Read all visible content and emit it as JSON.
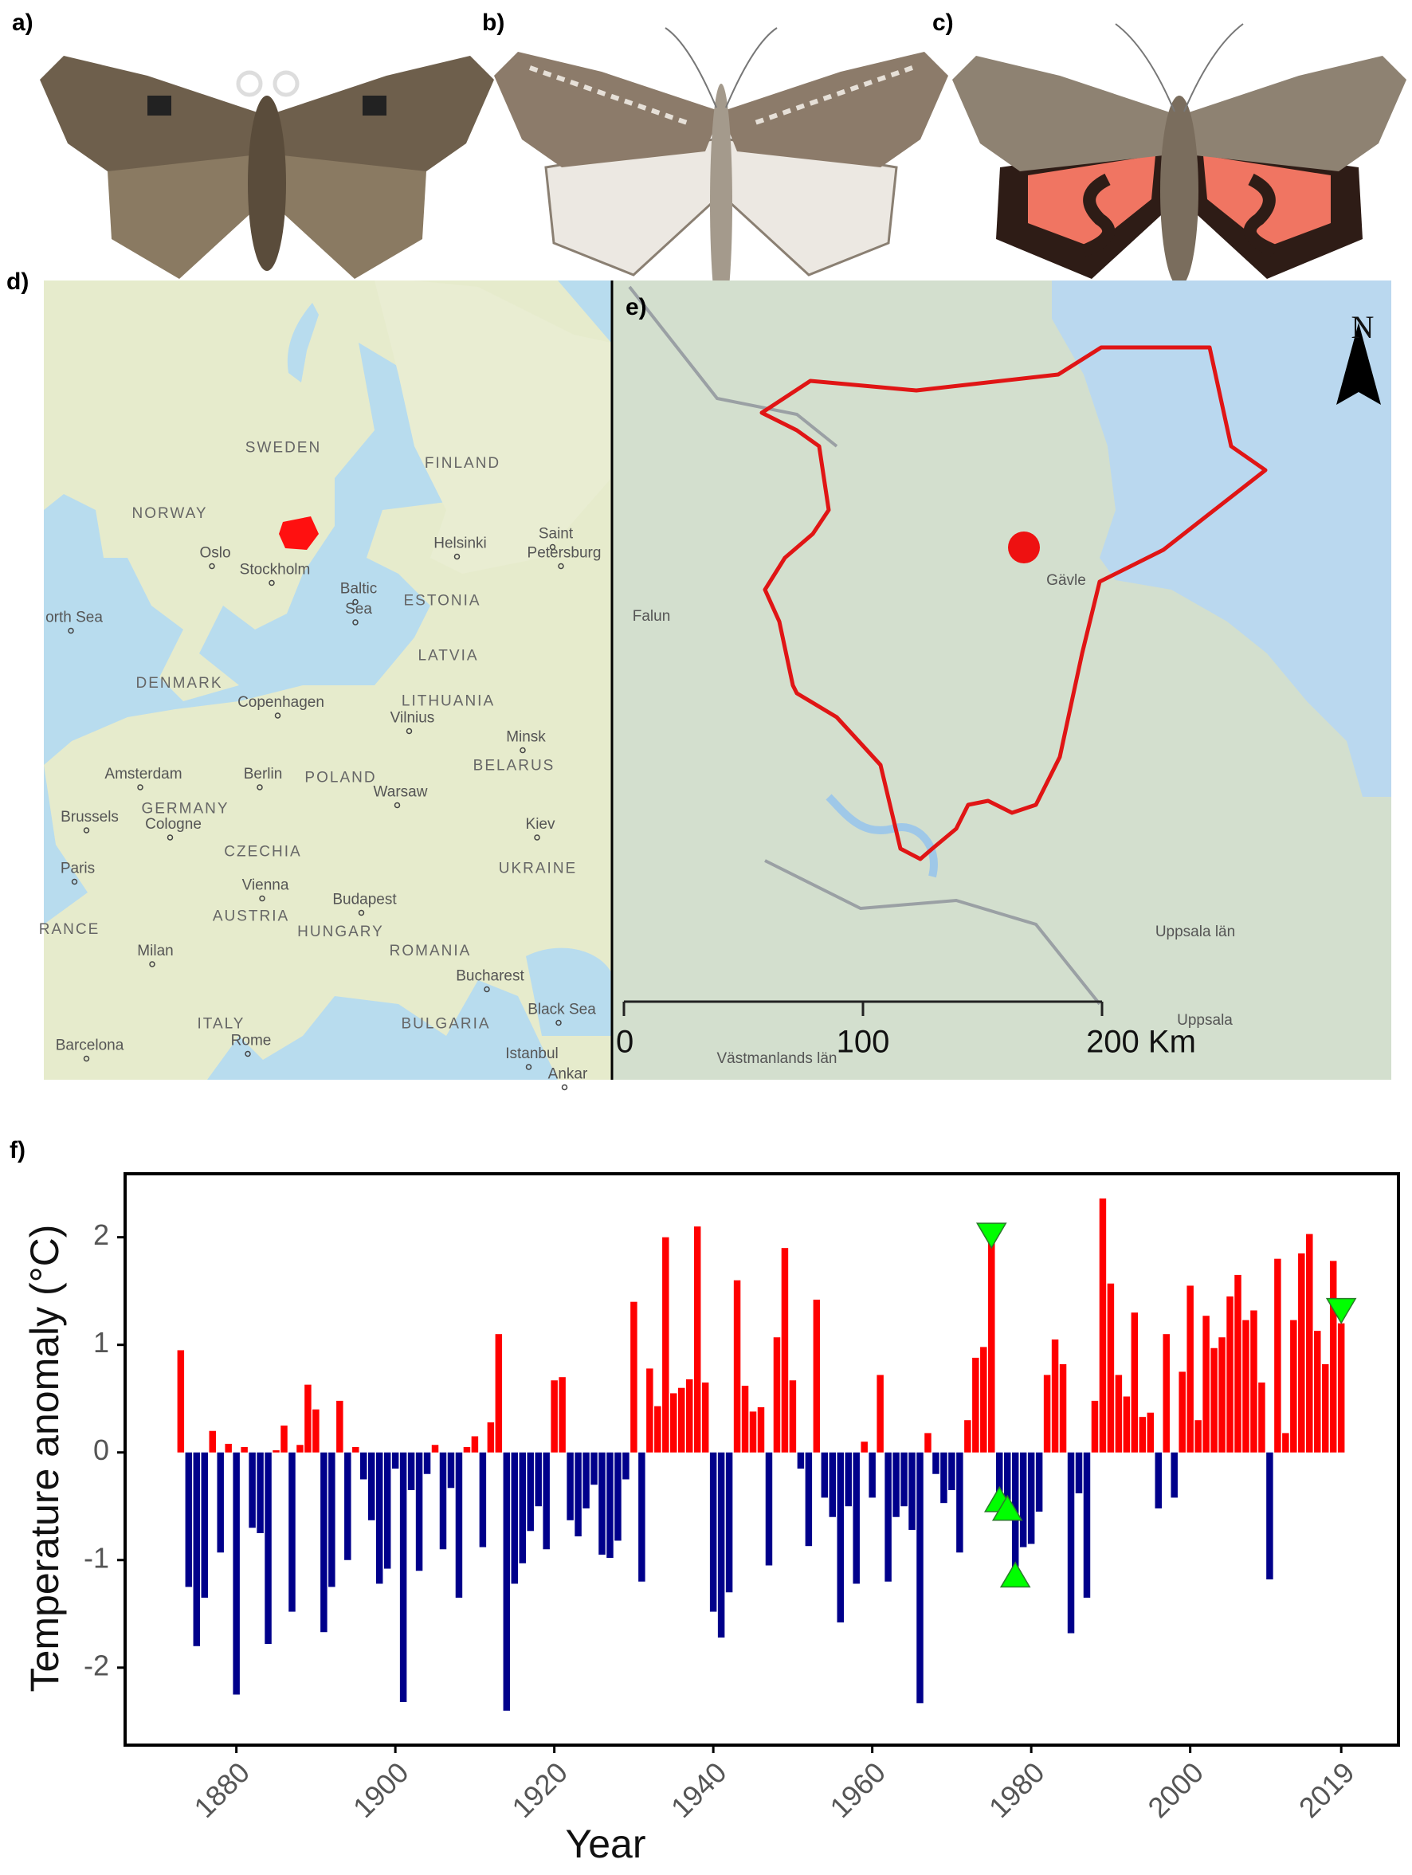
{
  "panels": {
    "a": "a)",
    "b": "b)",
    "c": "c)",
    "d": "d)",
    "e": "e)",
    "f": "f)"
  },
  "map_d": {
    "labels": [
      "SWEDEN",
      "FINLAND",
      "NORWAY",
      "Oslo",
      "Stockholm",
      "Helsinki",
      "Saint",
      "Petersburg",
      "Baltic",
      "Sea",
      "ESTONIA",
      "orth Sea",
      "LATVIA",
      "DENMARK",
      "Copenhagen",
      "LITHUANIA",
      "Vilnius",
      "Minsk",
      "BELARUS",
      "Amsterdam",
      "Berlin",
      "POLAND",
      "Warsaw",
      "GERMANY",
      "Brussels",
      "Cologne",
      "Kiev",
      "Paris",
      "CZECHIA",
      "UKRAINE",
      "Vienna",
      "Budapest",
      "AUSTRIA",
      "HUNGARY",
      "RANCE",
      "Milan",
      "ROMANIA",
      "Bucharest",
      "Black Sea",
      "ITALY",
      "Rome",
      "BULGARIA",
      "Barcelona",
      "Istanbul",
      "Ankar"
    ]
  },
  "map_e": {
    "labels": [
      "Falun",
      "Gävle",
      "Uppsala län",
      "Uppsala",
      "Västmanlands län"
    ],
    "scale": [
      "0",
      "100",
      "200 Km"
    ],
    "north": "N"
  },
  "chart_data": {
    "type": "bar",
    "xlabel": "Year",
    "ylabel": "Temperature anomaly (°C)",
    "x": [
      1873,
      1874,
      1875,
      1876,
      1877,
      1878,
      1879,
      1880,
      1881,
      1882,
      1883,
      1884,
      1885,
      1886,
      1887,
      1888,
      1889,
      1890,
      1891,
      1892,
      1893,
      1894,
      1895,
      1896,
      1897,
      1898,
      1899,
      1900,
      1901,
      1902,
      1903,
      1904,
      1905,
      1906,
      1907,
      1908,
      1909,
      1910,
      1911,
      1912,
      1913,
      1914,
      1915,
      1916,
      1917,
      1918,
      1919,
      1920,
      1921,
      1922,
      1923,
      1924,
      1925,
      1926,
      1927,
      1928,
      1929,
      1930,
      1931,
      1932,
      1933,
      1934,
      1935,
      1936,
      1937,
      1938,
      1939,
      1940,
      1941,
      1942,
      1943,
      1944,
      1945,
      1946,
      1947,
      1948,
      1949,
      1950,
      1951,
      1952,
      1953,
      1954,
      1955,
      1956,
      1957,
      1958,
      1959,
      1960,
      1961,
      1962,
      1963,
      1964,
      1965,
      1966,
      1967,
      1968,
      1969,
      1970,
      1971,
      1972,
      1973,
      1974,
      1975,
      1976,
      1977,
      1978,
      1979,
      1980,
      1981,
      1982,
      1983,
      1984,
      1985,
      1986,
      1987,
      1988,
      1989,
      1990,
      1991,
      1992,
      1993,
      1994,
      1995,
      1996,
      1997,
      1998,
      1999,
      2000,
      2001,
      2002,
      2003,
      2004,
      2005,
      2006,
      2007,
      2008,
      2009,
      2010,
      2011,
      2012,
      2013,
      2014,
      2015,
      2016,
      2017,
      2018,
      2019
    ],
    "values": [
      0.95,
      -1.25,
      -1.8,
      -1.35,
      0.2,
      -0.93,
      0.08,
      -2.25,
      0.05,
      -0.7,
      -0.75,
      -1.78,
      0.02,
      0.25,
      -1.48,
      0.07,
      0.63,
      0.4,
      -1.67,
      -1.25,
      0.48,
      -1.0,
      0.05,
      -0.25,
      -0.63,
      -1.22,
      -1.08,
      -0.15,
      -2.32,
      -0.35,
      -1.1,
      -0.2,
      0.07,
      -0.9,
      -0.33,
      -1.35,
      0.05,
      0.15,
      -0.88,
      0.28,
      1.1,
      -2.4,
      -1.22,
      -1.03,
      -0.73,
      -0.5,
      -0.9,
      0.67,
      0.7,
      -0.63,
      -0.78,
      -0.52,
      -0.3,
      -0.95,
      -0.98,
      -0.82,
      -0.25,
      1.4,
      -1.2,
      0.78,
      0.43,
      2.0,
      0.55,
      0.6,
      0.68,
      2.1,
      0.65,
      -1.48,
      -1.72,
      -1.3,
      1.6,
      0.62,
      0.38,
      0.42,
      -1.05,
      1.07,
      1.9,
      0.67,
      -0.15,
      -0.87,
      1.42,
      -0.42,
      -0.6,
      -1.58,
      -0.5,
      -1.22,
      0.1,
      -0.42,
      0.72,
      -1.2,
      -0.6,
      -0.5,
      -0.72,
      -2.33,
      0.18,
      -0.2,
      -0.47,
      -0.35,
      -0.93,
      0.3,
      0.88,
      0.98,
      2.0,
      -0.45,
      -0.55,
      -1.13,
      -0.88,
      -0.85,
      -0.55,
      0.72,
      1.05,
      0.82,
      -1.68,
      -0.38,
      -1.35,
      0.48,
      2.36,
      1.57,
      0.72,
      0.52,
      1.3,
      0.33,
      0.37,
      -0.52,
      1.1,
      -0.42,
      0.75,
      1.55,
      0.3,
      1.27,
      0.97,
      1.07,
      1.45,
      1.65,
      1.23,
      1.32,
      0.65,
      -1.18,
      1.8,
      0.18,
      1.23,
      1.85,
      2.03,
      1.13,
      0.82,
      1.78,
      1.2
    ],
    "colors": {
      "positive": "#ff0000",
      "negative": "#00008b"
    },
    "markers": {
      "color": "#00ff00",
      "points": [
        {
          "x": 1975,
          "y": 2.03,
          "shape": "down"
        },
        {
          "x": 1976,
          "y": -0.45,
          "shape": "up"
        },
        {
          "x": 1977,
          "y": -0.53,
          "shape": "up"
        },
        {
          "x": 1978,
          "y": -1.15,
          "shape": "up"
        },
        {
          "x": 2019,
          "y": 1.33,
          "shape": "down"
        }
      ]
    },
    "xlim": [
      1866,
      2026.2
    ],
    "ylim": [
      -2.72,
      2.59
    ],
    "xticks": [
      1880,
      1900,
      1920,
      1940,
      1960,
      1980,
      2000,
      2019
    ],
    "yticks": [
      -2,
      -1,
      0,
      1,
      2
    ],
    "grid": false
  }
}
